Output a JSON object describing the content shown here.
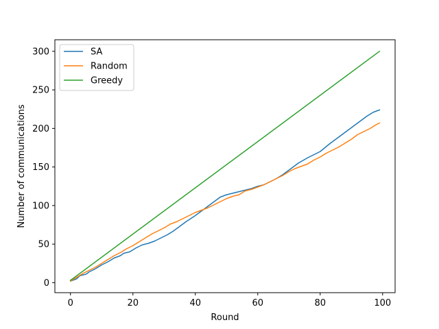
{
  "chart_data": {
    "type": "line",
    "title": "",
    "xlabel": "Round",
    "ylabel": "Number of communications",
    "xlim": [
      -5,
      104
    ],
    "ylim": [
      -13,
      315
    ],
    "xticks": [
      0,
      20,
      40,
      60,
      80,
      100
    ],
    "yticks": [
      0,
      50,
      100,
      150,
      200,
      250,
      300
    ],
    "grid": false,
    "legend_position": "upper-left",
    "series": [
      {
        "name": "SA",
        "color": "#1f77b4",
        "x": [
          0,
          2,
          3,
          5,
          6,
          8,
          10,
          12,
          14,
          16,
          17,
          19,
          21,
          23,
          25,
          27,
          29,
          31,
          33,
          35,
          37,
          40,
          42,
          44,
          46,
          48,
          50,
          52,
          54,
          56,
          58,
          60,
          62,
          64,
          66,
          68,
          70,
          73,
          76,
          80,
          83,
          86,
          89,
          92,
          95,
          97,
          99
        ],
        "y": [
          2,
          5,
          9,
          11,
          14,
          18,
          23,
          27,
          32,
          35,
          38,
          40,
          45,
          49,
          51,
          54,
          58,
          62,
          67,
          73,
          79,
          87,
          93,
          99,
          105,
          111,
          114,
          116,
          118,
          120,
          122,
          125,
          127,
          131,
          135,
          140,
          146,
          155,
          162,
          170,
          180,
          189,
          198,
          207,
          216,
          221,
          224
        ]
      },
      {
        "name": "Random",
        "color": "#ff7f0e",
        "x": [
          0,
          2,
          4,
          6,
          8,
          10,
          12,
          14,
          16,
          18,
          20,
          22,
          24,
          26,
          28,
          30,
          32,
          34,
          36,
          38,
          40,
          42,
          44,
          46,
          48,
          50,
          52,
          54,
          56,
          58,
          60,
          62,
          64,
          66,
          68,
          70,
          72,
          74,
          76,
          78,
          80,
          82,
          84,
          86,
          88,
          90,
          92,
          94,
          96,
          98,
          99
        ],
        "y": [
          2,
          7,
          12,
          16,
          20,
          25,
          30,
          35,
          39,
          44,
          48,
          53,
          58,
          63,
          67,
          71,
          76,
          79,
          83,
          87,
          91,
          94,
          97,
          101,
          105,
          109,
          112,
          114,
          119,
          121,
          124,
          127,
          131,
          135,
          139,
          144,
          148,
          151,
          154,
          159,
          163,
          168,
          172,
          176,
          181,
          186,
          192,
          196,
          200,
          205,
          207
        ]
      },
      {
        "name": "Greedy",
        "color": "#2ca02c",
        "x": [
          0,
          99
        ],
        "y": [
          3,
          300
        ]
      }
    ]
  }
}
